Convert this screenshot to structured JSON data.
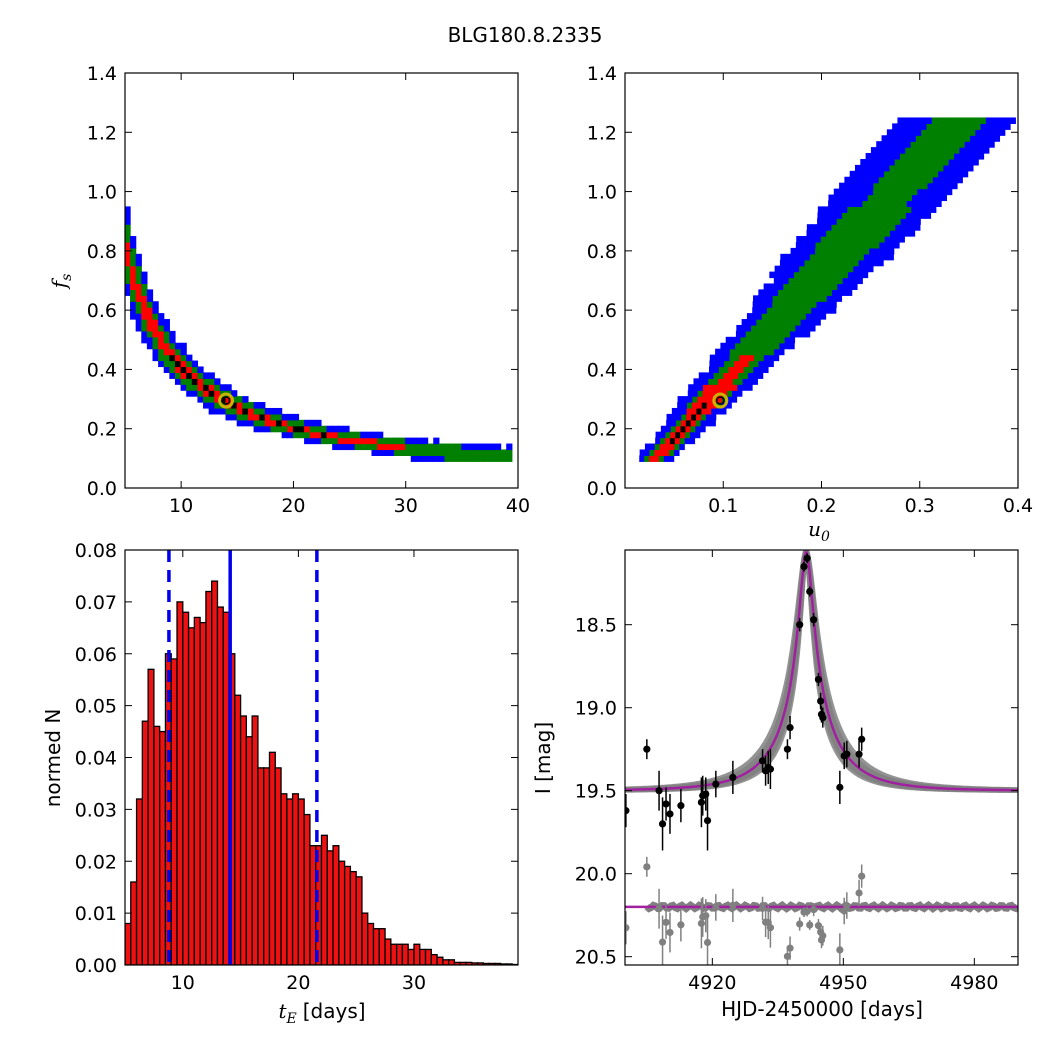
{
  "figure_title": "BLG180.8.2335",
  "colors": {
    "outer": "#0000ff",
    "mid": "#008000",
    "inner": "#ff0000",
    "core": "#000000",
    "best": "#c8b400",
    "model": "#a020a0",
    "gray": "#808080",
    "hist": "#ee1111",
    "line": "#0000ee"
  },
  "chart_data": [
    {
      "id": "fs_vs_tE",
      "type": "heatmap",
      "title": "",
      "xlabel": "",
      "ylabel": "f",
      "ylabel_sub": "s",
      "xlim": [
        5,
        40
      ],
      "ylim": [
        0,
        1.4
      ],
      "xticks": [
        10,
        20,
        30,
        40
      ],
      "yticks": [
        0.0,
        0.2,
        0.4,
        0.6,
        0.8,
        1.0,
        1.2,
        1.4
      ],
      "xtick_labels": [
        "10",
        "20",
        "30",
        "40"
      ],
      "ytick_labels": [
        "0.0",
        "0.2",
        "0.4",
        "0.6",
        "0.8",
        "1.0",
        "1.2",
        "1.4"
      ],
      "curve": "fs = 4.1 / tE",
      "best_fit": {
        "x": 14.0,
        "y": 0.295
      },
      "x_range": [
        5.2,
        39.2
      ]
    },
    {
      "id": "fs_vs_u0",
      "type": "heatmap",
      "title": "",
      "xlabel": "u",
      "xlabel_sub": "0",
      "ylabel": "",
      "xlim": [
        0.0,
        0.4
      ],
      "ylim": [
        0,
        1.4
      ],
      "xticks": [
        0.1,
        0.2,
        0.3,
        0.4
      ],
      "yticks": [
        0.0,
        0.2,
        0.4,
        0.6,
        0.8,
        1.0,
        1.2,
        1.4
      ],
      "xtick_labels": [
        "0.1",
        "0.2",
        "0.3",
        "0.4"
      ],
      "ytick_labels": [
        "0.0",
        "0.2",
        "0.4",
        "0.6",
        "0.8",
        "1.0",
        "1.2",
        "1.4"
      ],
      "best_fit": {
        "x": 0.097,
        "y": 0.295
      },
      "x_range": [
        0.032,
        0.35
      ]
    },
    {
      "id": "tE_histogram",
      "type": "bar",
      "title": "",
      "xlabel": "t",
      "xlabel_sub": "E",
      "xlabel_suffix": "[days]",
      "ylabel": "normed N",
      "xlim": [
        5,
        39
      ],
      "ylim": [
        0,
        0.08
      ],
      "xticks": [
        10,
        20,
        30
      ],
      "yticks": [
        0.0,
        0.01,
        0.02,
        0.03,
        0.04,
        0.05,
        0.06,
        0.07,
        0.08
      ],
      "xtick_labels": [
        "10",
        "20",
        "30"
      ],
      "ytick_labels": [
        "0.00",
        "0.01",
        "0.02",
        "0.03",
        "0.04",
        "0.05",
        "0.06",
        "0.07",
        "0.08"
      ],
      "bin_start": 5.0,
      "bin_width": 0.5,
      "values": [
        0.008,
        0.016,
        0.032,
        0.047,
        0.057,
        0.046,
        0.045,
        0.06,
        0.059,
        0.07,
        0.068,
        0.065,
        0.067,
        0.066,
        0.072,
        0.074,
        0.069,
        0.068,
        0.06,
        0.052,
        0.048,
        0.044,
        0.048,
        0.038,
        0.038,
        0.041,
        0.038,
        0.033,
        0.032,
        0.033,
        0.032,
        0.029,
        0.023,
        0.023,
        0.025,
        0.022,
        0.023,
        0.02,
        0.019,
        0.018,
        0.017,
        0.01,
        0.008,
        0.007,
        0.007,
        0.005,
        0.004,
        0.004,
        0.004,
        0.003,
        0.004,
        0.003,
        0.003,
        0.002,
        0.0015,
        0.001,
        0.001,
        0.0005,
        0.0005,
        0.0005,
        0.0004,
        0.0004,
        0.0003,
        0.0003,
        0.0003,
        0.0002,
        0.0002,
        0.0001
      ],
      "median_line": 14.1,
      "lower_line": 8.8,
      "upper_line": 21.6
    },
    {
      "id": "light_curve",
      "type": "scatter",
      "title": "",
      "xlabel": "HJD-2450000 [days]",
      "ylabel": "I [mag]",
      "xlim": [
        4900,
        4990
      ],
      "ylim": [
        20.55,
        18.05
      ],
      "xticks": [
        4920,
        4950,
        4980
      ],
      "yticks": [
        18.5,
        19.0,
        19.5,
        20.0,
        20.5
      ],
      "xtick_labels": [
        "4920",
        "4950",
        "4980"
      ],
      "ytick_labels": [
        "18.5",
        "19.0",
        "19.5",
        "20.0",
        "20.5"
      ],
      "model": {
        "t0": 4941.5,
        "tE": 14.0,
        "u0": 0.097,
        "fs": 0.295,
        "I_base": 19.5
      },
      "residual_offset": 20.2,
      "points": [
        {
          "t": 4900.2,
          "mag": 19.62,
          "err": 0.1
        },
        {
          "t": 4905.0,
          "mag": 19.25,
          "err": 0.06
        },
        {
          "t": 4907.8,
          "mag": 19.5,
          "err": 0.12
        },
        {
          "t": 4908.6,
          "mag": 19.7,
          "err": 0.16
        },
        {
          "t": 4909.4,
          "mag": 19.58,
          "err": 0.1
        },
        {
          "t": 4910.3,
          "mag": 19.64,
          "err": 0.12
        },
        {
          "t": 4912.8,
          "mag": 19.59,
          "err": 0.1
        },
        {
          "t": 4917.5,
          "mag": 19.57,
          "err": 0.15
        },
        {
          "t": 4917.8,
          "mag": 19.53,
          "err": 0.12
        },
        {
          "t": 4918.5,
          "mag": 19.52,
          "err": 0.1
        },
        {
          "t": 4918.9,
          "mag": 19.68,
          "err": 0.18
        },
        {
          "t": 4920.8,
          "mag": 19.46,
          "err": 0.08
        },
        {
          "t": 4924.7,
          "mag": 19.42,
          "err": 0.1
        },
        {
          "t": 4931.5,
          "mag": 19.32,
          "err": 0.07
        },
        {
          "t": 4932.2,
          "mag": 19.38,
          "err": 0.09
        },
        {
          "t": 4932.8,
          "mag": 19.36,
          "err": 0.1
        },
        {
          "t": 4933.3,
          "mag": 19.37,
          "err": 0.12
        },
        {
          "t": 4937.2,
          "mag": 19.25,
          "err": 0.06
        },
        {
          "t": 4937.8,
          "mag": 19.12,
          "err": 0.07
        },
        {
          "t": 4940.0,
          "mag": 18.5,
          "err": 0.04
        },
        {
          "t": 4941.0,
          "mag": 18.15,
          "err": 0.03
        },
        {
          "t": 4941.7,
          "mag": 18.1,
          "err": 0.03
        },
        {
          "t": 4942.3,
          "mag": 18.3,
          "err": 0.03
        },
        {
          "t": 4943.2,
          "mag": 18.47,
          "err": 0.04
        },
        {
          "t": 4944.3,
          "mag": 18.83,
          "err": 0.04
        },
        {
          "t": 4944.8,
          "mag": 18.96,
          "err": 0.05
        },
        {
          "t": 4945.0,
          "mag": 19.04,
          "err": 0.05
        },
        {
          "t": 4945.3,
          "mag": 19.06,
          "err": 0.06
        },
        {
          "t": 4949.2,
          "mag": 19.48,
          "err": 0.1
        },
        {
          "t": 4950.2,
          "mag": 19.29,
          "err": 0.08
        },
        {
          "t": 4950.8,
          "mag": 19.28,
          "err": 0.08
        },
        {
          "t": 4953.6,
          "mag": 19.28,
          "err": 0.08
        },
        {
          "t": 4954.2,
          "mag": 19.19,
          "err": 0.07
        }
      ]
    }
  ]
}
